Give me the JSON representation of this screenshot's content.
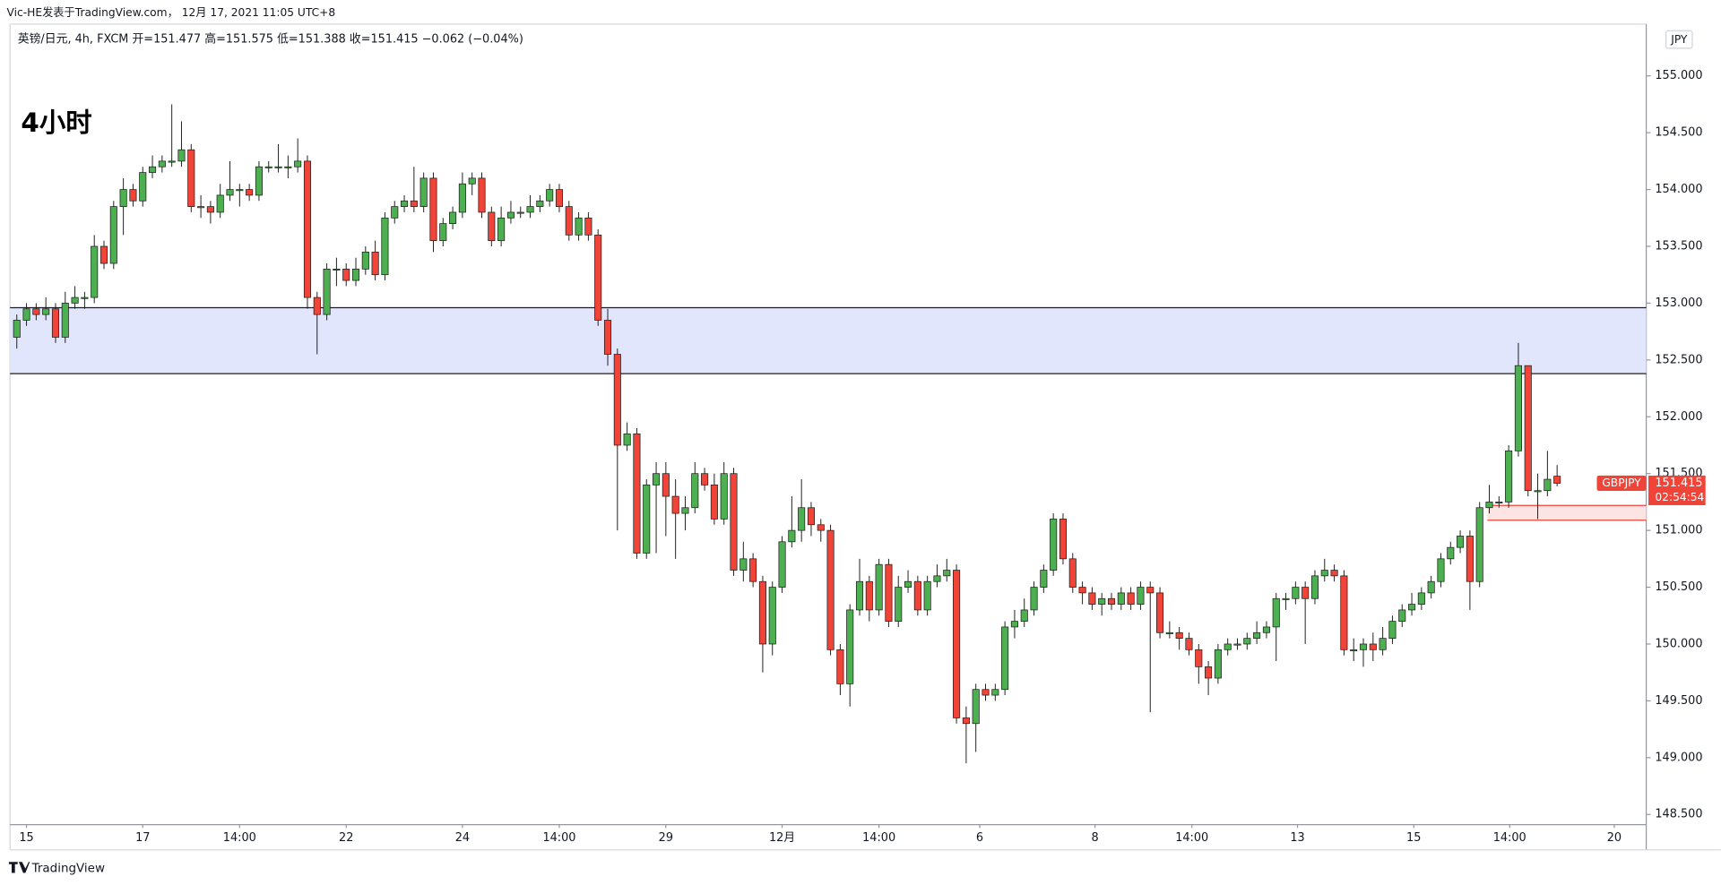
{
  "chart_data": {
    "type": "candlestick",
    "publisher": "Vic-HE发表于TradingView.com， 12月 17, 2021 11:05 UTC+8",
    "legend": "英镑/日元, 4h, FXCM  开=151.477  高=151.575  低=151.388  收=151.415  −0.062 (−0.04%)",
    "title": "4小时",
    "currency": "JPY",
    "brand": "TradingView",
    "up_color": "#4caf50",
    "down_color": "#f04438",
    "border_color": "#1e1e1e",
    "grid": false,
    "xlim": [
      -0.7,
      168.2
    ],
    "ylim": [
      148.41,
      155.475
    ],
    "xticks": [
      {
        "value": 1,
        "label": "15"
      },
      {
        "value": 13,
        "label": "17"
      },
      {
        "value": 23,
        "label": "14:00"
      },
      {
        "value": 34,
        "label": "22"
      },
      {
        "value": 46,
        "label": "24"
      },
      {
        "value": 56,
        "label": "14:00"
      },
      {
        "value": 67,
        "label": "29"
      },
      {
        "value": 79,
        "label": "12月"
      },
      {
        "value": 89,
        "label": "14:00"
      },
      {
        "value": 99.4,
        "label": "6"
      },
      {
        "value": 111.3,
        "label": "8"
      },
      {
        "value": 121.3,
        "label": "14:00"
      },
      {
        "value": 132.2,
        "label": "13"
      },
      {
        "value": 144.2,
        "label": "15"
      },
      {
        "value": 154.1,
        "label": "14:00"
      },
      {
        "value": 164.9,
        "label": "20"
      }
    ],
    "yticks": [
      {
        "value": 148.5,
        "label": "148.500"
      },
      {
        "value": 149,
        "label": "149.000"
      },
      {
        "value": 149.5,
        "label": "149.500"
      },
      {
        "value": 150,
        "label": "150.000"
      },
      {
        "value": 150.5,
        "label": "150.500"
      },
      {
        "value": 151,
        "label": "151.000"
      },
      {
        "value": 151.5,
        "label": "151.500"
      },
      {
        "value": 152,
        "label": "152.000"
      },
      {
        "value": 152.5,
        "label": "152.500"
      },
      {
        "value": 153,
        "label": "153.000"
      },
      {
        "value": 153.5,
        "label": "153.500"
      },
      {
        "value": 154,
        "label": "154.000"
      },
      {
        "value": 154.5,
        "label": "154.500"
      },
      {
        "value": 155,
        "label": "155.000"
      }
    ],
    "zones": [
      {
        "from": 152.38,
        "to": 152.96,
        "start": -0.7,
        "color": "#e1e6fd",
        "edge": "#1e1e1e"
      },
      {
        "from": 151.09,
        "to": 151.22,
        "start": 151.8,
        "color": "#fce4e4",
        "edge": "#f04438"
      }
    ],
    "last_price": {
      "symbol": "GBPJPY",
      "value": 151.415,
      "countdown": "02:54:54",
      "color": "#f04438"
    },
    "ohlc": [
      [
        152.7,
        152.9,
        152.6,
        152.85
      ],
      [
        152.85,
        153.0,
        152.8,
        152.95
      ],
      [
        152.95,
        153.0,
        152.85,
        152.9
      ],
      [
        152.9,
        153.05,
        152.85,
        152.95
      ],
      [
        152.95,
        153.0,
        152.65,
        152.7
      ],
      [
        152.7,
        153.1,
        152.65,
        153.0
      ],
      [
        153.0,
        153.15,
        152.95,
        153.05
      ],
      [
        153.05,
        153.1,
        152.95,
        153.05
      ],
      [
        153.05,
        153.6,
        153.0,
        153.5
      ],
      [
        153.5,
        153.55,
        153.3,
        153.35
      ],
      [
        153.35,
        153.9,
        153.3,
        153.85
      ],
      [
        153.85,
        154.1,
        153.6,
        154.0
      ],
      [
        154.0,
        154.05,
        153.85,
        153.9
      ],
      [
        153.9,
        154.2,
        153.85,
        154.15
      ],
      [
        154.15,
        154.3,
        154.1,
        154.2
      ],
      [
        154.2,
        154.3,
        154.15,
        154.25
      ],
      [
        154.25,
        154.75,
        154.2,
        154.25
      ],
      [
        154.25,
        154.6,
        154.2,
        154.35
      ],
      [
        154.35,
        154.4,
        153.8,
        153.85
      ],
      [
        153.85,
        153.95,
        153.75,
        153.85
      ],
      [
        153.85,
        153.9,
        153.7,
        153.8
      ],
      [
        153.8,
        154.05,
        153.75,
        153.95
      ],
      [
        153.95,
        154.25,
        153.9,
        154.0
      ],
      [
        154.0,
        154.05,
        153.85,
        154.0
      ],
      [
        154.0,
        154.05,
        153.9,
        153.95
      ],
      [
        153.95,
        154.25,
        153.9,
        154.2
      ],
      [
        154.2,
        154.25,
        154.15,
        154.2
      ],
      [
        154.2,
        154.4,
        154.15,
        154.2
      ],
      [
        154.2,
        154.3,
        154.1,
        154.2
      ],
      [
        154.2,
        154.45,
        154.15,
        154.25
      ],
      [
        154.25,
        154.3,
        152.95,
        153.05
      ],
      [
        153.05,
        153.1,
        152.55,
        152.9
      ],
      [
        152.9,
        153.35,
        152.85,
        153.3
      ],
      [
        153.3,
        153.4,
        153.15,
        153.3
      ],
      [
        153.3,
        153.35,
        153.15,
        153.2
      ],
      [
        153.2,
        153.4,
        153.15,
        153.3
      ],
      [
        153.3,
        153.5,
        153.25,
        153.45
      ],
      [
        153.45,
        153.55,
        153.2,
        153.25
      ],
      [
        153.25,
        153.8,
        153.2,
        153.75
      ],
      [
        153.75,
        153.9,
        153.7,
        153.85
      ],
      [
        153.85,
        153.95,
        153.8,
        153.9
      ],
      [
        153.9,
        154.2,
        153.8,
        153.85
      ],
      [
        153.85,
        154.15,
        153.8,
        154.1
      ],
      [
        154.1,
        154.15,
        153.45,
        153.55
      ],
      [
        153.55,
        153.75,
        153.5,
        153.7
      ],
      [
        153.7,
        153.85,
        153.65,
        153.8
      ],
      [
        153.8,
        154.15,
        153.75,
        154.05
      ],
      [
        154.05,
        154.15,
        153.95,
        154.1
      ],
      [
        154.1,
        154.15,
        153.75,
        153.8
      ],
      [
        153.8,
        153.85,
        153.5,
        153.55
      ],
      [
        153.55,
        153.85,
        153.5,
        153.75
      ],
      [
        153.75,
        153.9,
        153.7,
        153.8
      ],
      [
        153.8,
        153.85,
        153.75,
        153.8
      ],
      [
        153.8,
        153.95,
        153.75,
        153.85
      ],
      [
        153.85,
        153.95,
        153.8,
        153.9
      ],
      [
        153.9,
        154.05,
        153.85,
        154.0
      ],
      [
        154.0,
        154.05,
        153.8,
        153.85
      ],
      [
        153.85,
        153.9,
        153.55,
        153.6
      ],
      [
        153.6,
        153.8,
        153.55,
        153.75
      ],
      [
        153.75,
        153.8,
        153.55,
        153.6
      ],
      [
        153.6,
        153.65,
        152.8,
        152.85
      ],
      [
        152.85,
        152.95,
        152.45,
        152.55
      ],
      [
        152.55,
        152.6,
        151.0,
        151.75
      ],
      [
        151.75,
        151.95,
        151.7,
        151.85
      ],
      [
        151.85,
        151.9,
        150.75,
        150.8
      ],
      [
        150.8,
        151.45,
        150.75,
        151.4
      ],
      [
        151.4,
        151.6,
        150.8,
        151.5
      ],
      [
        151.5,
        151.6,
        150.95,
        151.3
      ],
      [
        151.3,
        151.45,
        150.75,
        151.15
      ],
      [
        151.15,
        151.3,
        151.0,
        151.2
      ],
      [
        151.2,
        151.6,
        151.15,
        151.5
      ],
      [
        151.5,
        151.55,
        151.35,
        151.4
      ],
      [
        151.4,
        151.5,
        151.05,
        151.1
      ],
      [
        151.1,
        151.6,
        151.05,
        151.5
      ],
      [
        151.5,
        151.55,
        150.6,
        150.65
      ],
      [
        150.65,
        150.9,
        150.55,
        150.75
      ],
      [
        150.75,
        150.8,
        150.5,
        150.55
      ],
      [
        150.55,
        150.6,
        149.75,
        150.0
      ],
      [
        150.0,
        150.55,
        149.9,
        150.5
      ],
      [
        150.5,
        150.95,
        150.45,
        150.9
      ],
      [
        150.9,
        151.3,
        150.85,
        151.0
      ],
      [
        151.0,
        151.45,
        150.9,
        151.2
      ],
      [
        151.2,
        151.25,
        150.95,
        151.05
      ],
      [
        151.05,
        151.1,
        150.9,
        151.0
      ],
      [
        151.0,
        151.05,
        149.9,
        149.95
      ],
      [
        149.95,
        150.0,
        149.55,
        149.65
      ],
      [
        149.65,
        150.35,
        149.45,
        150.3
      ],
      [
        150.3,
        150.75,
        150.25,
        150.55
      ],
      [
        150.55,
        150.6,
        150.2,
        150.3
      ],
      [
        150.3,
        150.75,
        150.25,
        150.7
      ],
      [
        150.7,
        150.75,
        150.15,
        150.2
      ],
      [
        150.2,
        150.6,
        150.15,
        150.5
      ],
      [
        150.5,
        150.65,
        150.45,
        150.55
      ],
      [
        150.55,
        150.6,
        150.25,
        150.3
      ],
      [
        150.3,
        150.6,
        150.25,
        150.55
      ],
      [
        150.55,
        150.7,
        150.5,
        150.6
      ],
      [
        150.6,
        150.75,
        150.55,
        150.65
      ],
      [
        150.65,
        150.7,
        149.3,
        149.35
      ],
      [
        149.35,
        149.45,
        148.95,
        149.3
      ],
      [
        149.3,
        149.65,
        149.05,
        149.6
      ],
      [
        149.6,
        149.65,
        149.5,
        149.55
      ],
      [
        149.55,
        149.65,
        149.5,
        149.6
      ],
      [
        149.6,
        150.2,
        149.55,
        150.15
      ],
      [
        150.15,
        150.3,
        150.05,
        150.2
      ],
      [
        150.2,
        150.4,
        150.15,
        150.3
      ],
      [
        150.3,
        150.55,
        150.25,
        150.5
      ],
      [
        150.5,
        150.7,
        150.45,
        150.65
      ],
      [
        150.65,
        151.15,
        150.6,
        151.1
      ],
      [
        151.1,
        151.15,
        150.7,
        150.75
      ],
      [
        150.75,
        150.8,
        150.45,
        150.5
      ],
      [
        150.5,
        150.55,
        150.35,
        150.45
      ],
      [
        150.45,
        150.5,
        150.3,
        150.35
      ],
      [
        150.35,
        150.45,
        150.25,
        150.4
      ],
      [
        150.4,
        150.45,
        150.3,
        150.35
      ],
      [
        150.35,
        150.5,
        150.3,
        150.45
      ],
      [
        150.45,
        150.5,
        150.3,
        150.35
      ],
      [
        150.35,
        150.55,
        150.3,
        150.5
      ],
      [
        150.5,
        150.55,
        149.4,
        150.45
      ],
      [
        150.45,
        150.5,
        150.05,
        150.1
      ],
      [
        150.1,
        150.2,
        150.05,
        150.1
      ],
      [
        150.1,
        150.15,
        149.95,
        150.05
      ],
      [
        150.05,
        150.1,
        149.9,
        149.95
      ],
      [
        149.95,
        150.0,
        149.65,
        149.8
      ],
      [
        149.8,
        149.85,
        149.55,
        149.7
      ],
      [
        149.7,
        150.0,
        149.65,
        149.95
      ],
      [
        149.95,
        150.05,
        149.9,
        150.0
      ],
      [
        150.0,
        150.05,
        149.95,
        150.0
      ],
      [
        150.0,
        150.1,
        149.95,
        150.05
      ],
      [
        150.05,
        150.2,
        150.0,
        150.1
      ],
      [
        150.1,
        150.2,
        150.05,
        150.15
      ],
      [
        150.15,
        150.45,
        149.85,
        150.4
      ],
      [
        150.4,
        150.45,
        150.3,
        150.4
      ],
      [
        150.4,
        150.55,
        150.35,
        150.5
      ],
      [
        150.5,
        150.55,
        150.0,
        150.4
      ],
      [
        150.4,
        150.65,
        150.35,
        150.6
      ],
      [
        150.6,
        150.75,
        150.55,
        150.65
      ],
      [
        150.65,
        150.7,
        150.55,
        150.6
      ],
      [
        150.6,
        150.65,
        149.9,
        149.95
      ],
      [
        149.95,
        150.05,
        149.85,
        149.95
      ],
      [
        149.95,
        150.05,
        149.8,
        150.0
      ],
      [
        150.0,
        150.1,
        149.85,
        149.95
      ],
      [
        149.95,
        150.15,
        149.9,
        150.05
      ],
      [
        150.05,
        150.25,
        150.0,
        150.2
      ],
      [
        150.2,
        150.35,
        150.15,
        150.3
      ],
      [
        150.3,
        150.45,
        150.25,
        150.35
      ],
      [
        150.35,
        150.5,
        150.3,
        150.45
      ],
      [
        150.45,
        150.6,
        150.4,
        150.55
      ],
      [
        150.55,
        150.8,
        150.5,
        150.75
      ],
      [
        150.75,
        150.9,
        150.7,
        150.85
      ],
      [
        150.85,
        151.0,
        150.8,
        150.95
      ],
      [
        150.95,
        151.0,
        150.3,
        150.55
      ],
      [
        150.55,
        151.25,
        150.5,
        151.2
      ],
      [
        151.2,
        151.4,
        151.15,
        151.25
      ],
      [
        151.25,
        151.3,
        151.2,
        151.25
      ],
      [
        151.25,
        151.75,
        151.2,
        151.7
      ],
      [
        151.7,
        152.65,
        151.65,
        152.45
      ],
      [
        152.45,
        152.45,
        151.3,
        151.35
      ],
      [
        151.35,
        151.5,
        151.1,
        151.35
      ],
      [
        151.35,
        151.7,
        151.3,
        151.45
      ],
      [
        151.477,
        151.575,
        151.388,
        151.415
      ]
    ]
  }
}
